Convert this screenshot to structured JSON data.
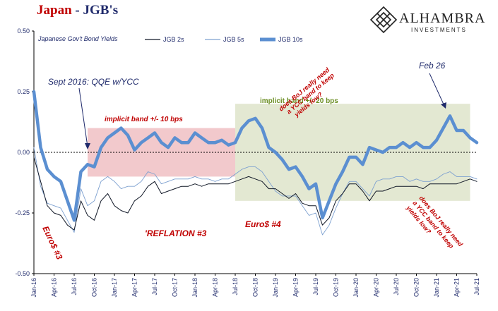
{
  "header": {
    "title_part1": "Japan",
    "title_part2": " - JGB's",
    "logo_name": "ALHAMBRA",
    "logo_sub": "INVESTMENTS",
    "logo_icon": "diamond-lattice-icon"
  },
  "colors": {
    "title_red": "#c00000",
    "title_navy": "#1f2a6b",
    "jgb2s": "#111827",
    "jgb5s": "#7ea1d0",
    "jgb10s": "#5b8fd1",
    "band_red": "#f2c9cc",
    "band_green": "#e3e8d2",
    "annotation_red": "#c00000",
    "annotation_green": "#6b8e23"
  },
  "chart_data": {
    "type": "line",
    "title": "Japanese Gov't Bond Yields",
    "ylim": [
      -0.5,
      0.5
    ],
    "yticks": [
      "0.50",
      "0.25",
      "0.00",
      "-0.25",
      "-0.50"
    ],
    "ytick_values": [
      0.5,
      0.25,
      0.0,
      -0.25,
      -0.5
    ],
    "xlim": [
      "2016-01",
      "2021-07"
    ],
    "xticks": [
      "Jan-16",
      "Apr-16",
      "Jul-16",
      "Oct-16",
      "Jan-17",
      "Apr-17",
      "Jul-17",
      "Oct-17",
      "Jan-18",
      "Apr-18",
      "Jul-18",
      "Oct-18",
      "Jan-19",
      "Apr-19",
      "Jul-19",
      "Oct-19",
      "Jan-20",
      "Apr-20",
      "Jul-20",
      "Oct-20",
      "Jan-21",
      "Apr-21",
      "Jul-21"
    ],
    "grid": false,
    "legend_position": "top",
    "legend": [
      "JGB 2s",
      "JGB 5s",
      "JGB 10s"
    ],
    "series": [
      {
        "name": "JGB 2s",
        "x": [
          "2016-01",
          "2016-02",
          "2016-03",
          "2016-04",
          "2016-05",
          "2016-06",
          "2016-07",
          "2016-08",
          "2016-09",
          "2016-10",
          "2016-11",
          "2016-12",
          "2017-01",
          "2017-02",
          "2017-03",
          "2017-04",
          "2017-05",
          "2017-06",
          "2017-07",
          "2017-08",
          "2017-09",
          "2017-10",
          "2017-11",
          "2017-12",
          "2018-01",
          "2018-02",
          "2018-03",
          "2018-04",
          "2018-05",
          "2018-06",
          "2018-07",
          "2018-08",
          "2018-09",
          "2018-10",
          "2018-11",
          "2018-12",
          "2019-01",
          "2019-02",
          "2019-03",
          "2019-04",
          "2019-05",
          "2019-06",
          "2019-07",
          "2019-08",
          "2019-09",
          "2019-10",
          "2019-11",
          "2019-12",
          "2020-01",
          "2020-02",
          "2020-03",
          "2020-04",
          "2020-05",
          "2020-06",
          "2020-07",
          "2020-08",
          "2020-09",
          "2020-10",
          "2020-11",
          "2020-12",
          "2021-01",
          "2021-02",
          "2021-03",
          "2021-04",
          "2021-05",
          "2021-06",
          "2021-07"
        ],
        "values": [
          -0.02,
          -0.12,
          -0.22,
          -0.25,
          -0.26,
          -0.3,
          -0.32,
          -0.2,
          -0.26,
          -0.28,
          -0.2,
          -0.17,
          -0.22,
          -0.24,
          -0.25,
          -0.2,
          -0.18,
          -0.14,
          -0.12,
          -0.17,
          -0.16,
          -0.15,
          -0.14,
          -0.14,
          -0.13,
          -0.14,
          -0.13,
          -0.13,
          -0.13,
          -0.13,
          -0.12,
          -0.11,
          -0.1,
          -0.11,
          -0.12,
          -0.15,
          -0.15,
          -0.17,
          -0.19,
          -0.17,
          -0.21,
          -0.22,
          -0.22,
          -0.3,
          -0.27,
          -0.2,
          -0.17,
          -0.13,
          -0.13,
          -0.16,
          -0.2,
          -0.16,
          -0.16,
          -0.15,
          -0.14,
          -0.14,
          -0.14,
          -0.14,
          -0.15,
          -0.13,
          -0.13,
          -0.13,
          -0.13,
          -0.13,
          -0.12,
          -0.11,
          -0.12
        ]
      },
      {
        "name": "JGB 5s",
        "x": [
          "2016-01",
          "2016-02",
          "2016-03",
          "2016-04",
          "2016-05",
          "2016-06",
          "2016-07",
          "2016-08",
          "2016-09",
          "2016-10",
          "2016-11",
          "2016-12",
          "2017-01",
          "2017-02",
          "2017-03",
          "2017-04",
          "2017-05",
          "2017-06",
          "2017-07",
          "2017-08",
          "2017-09",
          "2017-10",
          "2017-11",
          "2017-12",
          "2018-01",
          "2018-02",
          "2018-03",
          "2018-04",
          "2018-05",
          "2018-06",
          "2018-07",
          "2018-08",
          "2018-09",
          "2018-10",
          "2018-11",
          "2018-12",
          "2019-01",
          "2019-02",
          "2019-03",
          "2019-04",
          "2019-05",
          "2019-06",
          "2019-07",
          "2019-08",
          "2019-09",
          "2019-10",
          "2019-11",
          "2019-12",
          "2020-01",
          "2020-02",
          "2020-03",
          "2020-04",
          "2020-05",
          "2020-06",
          "2020-07",
          "2020-08",
          "2020-09",
          "2020-10",
          "2020-11",
          "2020-12",
          "2021-01",
          "2021-02",
          "2021-03",
          "2021-04",
          "2021-05",
          "2021-06",
          "2021-07"
        ],
        "values": [
          0.02,
          -0.14,
          -0.21,
          -0.22,
          -0.23,
          -0.28,
          -0.33,
          -0.15,
          -0.22,
          -0.2,
          -0.12,
          -0.1,
          -0.12,
          -0.15,
          -0.14,
          -0.14,
          -0.12,
          -0.08,
          -0.09,
          -0.13,
          -0.12,
          -0.11,
          -0.11,
          -0.11,
          -0.1,
          -0.11,
          -0.11,
          -0.12,
          -0.11,
          -0.11,
          -0.09,
          -0.07,
          -0.06,
          -0.06,
          -0.08,
          -0.12,
          -0.16,
          -0.18,
          -0.18,
          -0.18,
          -0.22,
          -0.26,
          -0.25,
          -0.34,
          -0.3,
          -0.23,
          -0.17,
          -0.12,
          -0.12,
          -0.15,
          -0.18,
          -0.12,
          -0.11,
          -0.11,
          -0.1,
          -0.1,
          -0.12,
          -0.11,
          -0.12,
          -0.12,
          -0.11,
          -0.09,
          -0.08,
          -0.1,
          -0.1,
          -0.1,
          -0.11
        ]
      },
      {
        "name": "JGB 10s",
        "x": [
          "2016-01",
          "2016-02",
          "2016-03",
          "2016-04",
          "2016-05",
          "2016-06",
          "2016-07",
          "2016-08",
          "2016-09",
          "2016-10",
          "2016-11",
          "2016-12",
          "2017-01",
          "2017-02",
          "2017-03",
          "2017-04",
          "2017-05",
          "2017-06",
          "2017-07",
          "2017-08",
          "2017-09",
          "2017-10",
          "2017-11",
          "2017-12",
          "2018-01",
          "2018-02",
          "2018-03",
          "2018-04",
          "2018-05",
          "2018-06",
          "2018-07",
          "2018-08",
          "2018-09",
          "2018-10",
          "2018-11",
          "2018-12",
          "2019-01",
          "2019-02",
          "2019-03",
          "2019-04",
          "2019-05",
          "2019-06",
          "2019-07",
          "2019-08",
          "2019-09",
          "2019-10",
          "2019-11",
          "2019-12",
          "2020-01",
          "2020-02",
          "2020-03",
          "2020-04",
          "2020-05",
          "2020-06",
          "2020-07",
          "2020-08",
          "2020-09",
          "2020-10",
          "2020-11",
          "2020-12",
          "2021-01",
          "2021-02",
          "2021-03",
          "2021-04",
          "2021-05",
          "2021-06",
          "2021-07"
        ],
        "values": [
          0.25,
          0.02,
          -0.07,
          -0.1,
          -0.12,
          -0.2,
          -0.28,
          -0.08,
          -0.05,
          -0.06,
          0.02,
          0.06,
          0.08,
          0.1,
          0.07,
          0.01,
          0.04,
          0.06,
          0.08,
          0.04,
          0.02,
          0.06,
          0.04,
          0.04,
          0.08,
          0.06,
          0.04,
          0.04,
          0.05,
          0.03,
          0.04,
          0.1,
          0.13,
          0.14,
          0.1,
          0.02,
          0.0,
          -0.03,
          -0.07,
          -0.06,
          -0.1,
          -0.15,
          -0.13,
          -0.27,
          -0.2,
          -0.13,
          -0.08,
          -0.02,
          -0.02,
          -0.05,
          0.02,
          0.01,
          0.0,
          0.02,
          0.02,
          0.04,
          0.02,
          0.04,
          0.02,
          0.02,
          0.05,
          0.1,
          0.15,
          0.09,
          0.09,
          0.06,
          0.04
        ]
      }
    ],
    "bands": [
      {
        "label": "implicit band +/- 10 bps",
        "from": "2016-09",
        "to": "2018-07",
        "low": -0.1,
        "high": 0.1,
        "color": "#f2c9cc"
      },
      {
        "label": "implicit band +/- 20 bps",
        "from": "2018-07",
        "to": "2021-06",
        "low": -0.2,
        "high": 0.2,
        "color": "#e3e8d2"
      }
    ],
    "annotations": [
      {
        "text": "Sept 2016:  QQE w/YCC",
        "style": "dark"
      },
      {
        "text": "implicit band  +/- 10 bps",
        "style": "red"
      },
      {
        "text": "implicit band +/- 20 bps",
        "style": "green"
      },
      {
        "text": "Feb 26",
        "style": "dark"
      },
      {
        "text": "Euro$ #3",
        "style": "red"
      },
      {
        "text": "'REFLATION #3",
        "style": "red"
      },
      {
        "text": "Euro$ #4",
        "style": "red"
      },
      {
        "lines": [
          "does BoJ really need",
          "a YCC band to keep",
          "yields low?"
        ],
        "style": "red"
      },
      {
        "lines": [
          "does BoJ really need",
          "a YCC band to keep",
          "yields low?"
        ],
        "style": "red"
      }
    ]
  }
}
